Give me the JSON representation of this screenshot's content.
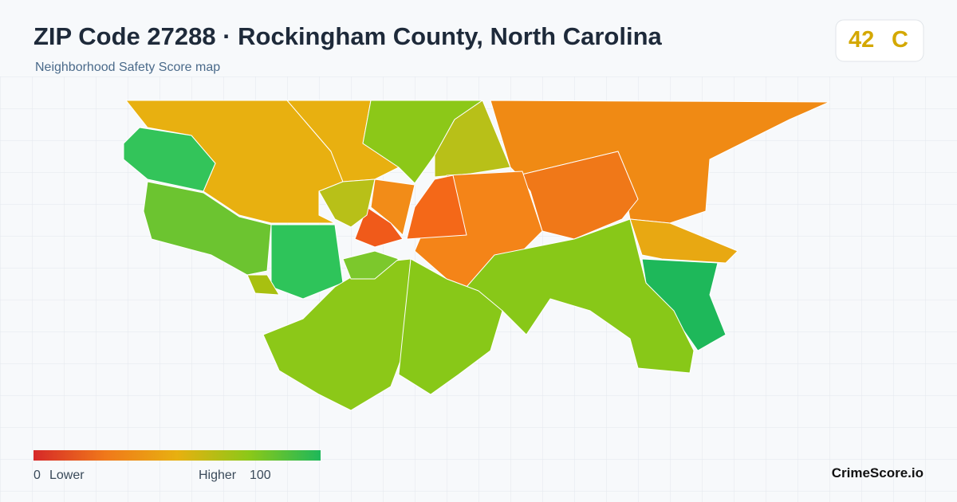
{
  "header": {
    "title": "ZIP Code 27288 · Rockingham County, North Carolina",
    "subtitle": "Neighborhood Safety Score map"
  },
  "score": {
    "value": "42",
    "grade": "C"
  },
  "legend": {
    "min": "0",
    "min_label": "Lower",
    "max_label": "Higher",
    "max": "100"
  },
  "brand": "CrimeScore.io"
}
